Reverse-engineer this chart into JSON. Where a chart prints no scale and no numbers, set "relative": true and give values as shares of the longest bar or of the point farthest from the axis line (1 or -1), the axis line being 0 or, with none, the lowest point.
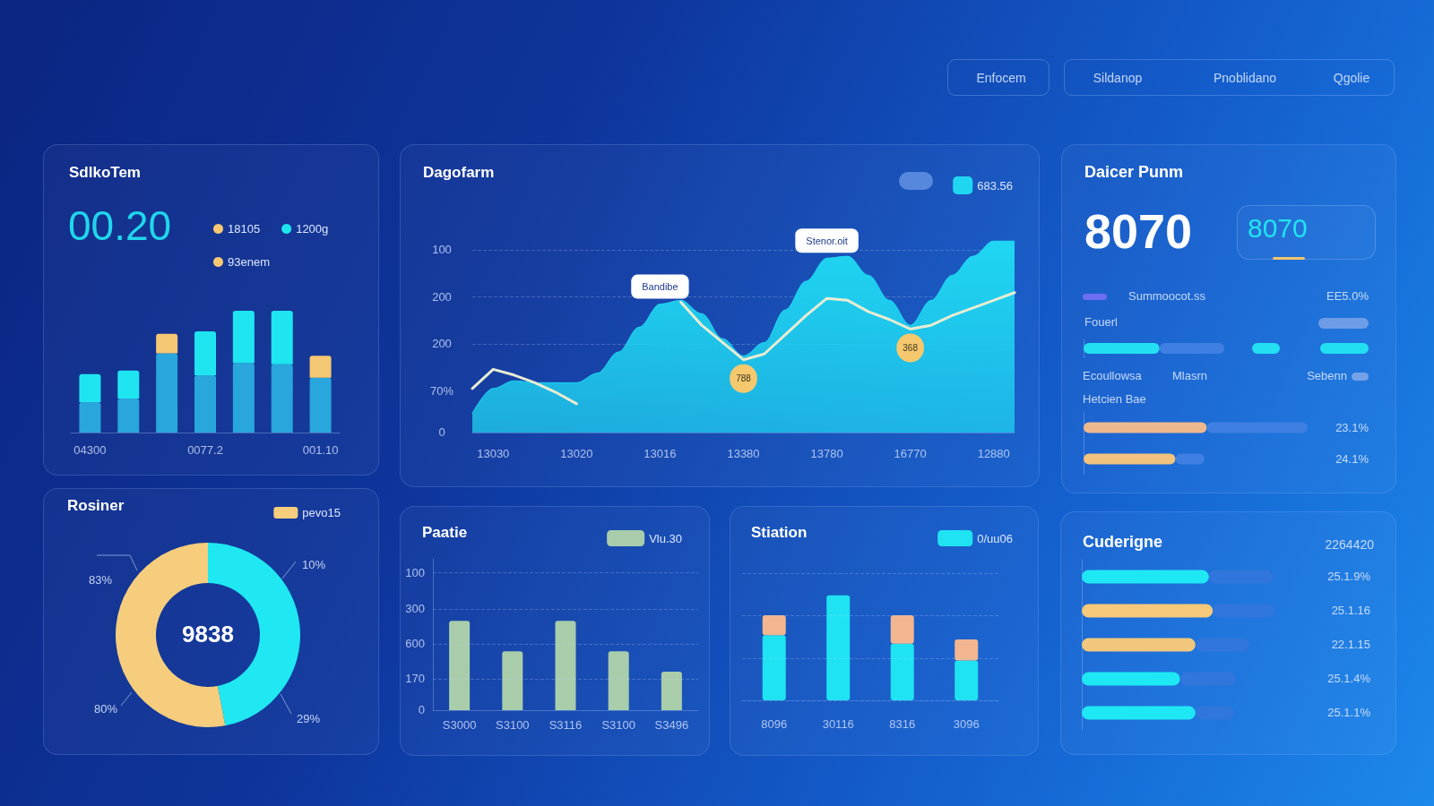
{
  "chart_data": [
    {
      "type": "other",
      "annotations": [
        "Enfocem",
        "Sildanop",
        "Pnoblidano",
        "Qgolie"
      ]
    },
    {
      "type": "bar",
      "title": "SdlkoTem",
      "annotations": [
        "00.20"
      ],
      "categories": [
        "04300",
        null,
        null,
        "0077.2",
        null,
        null,
        "001.10"
      ],
      "relative": true,
      "stacked": true,
      "legend": "top right",
      "series": [
        {
          "color": "#29a6dc",
          "values": [
            0.25,
            0.28,
            0.65,
            0.47,
            0.57,
            0.56,
            0.45
          ]
        },
        {
          "name": "18105",
          "color": "#f5c873",
          "values": [
            null,
            null,
            0.16,
            null,
            null,
            null,
            null
          ]
        },
        {
          "name": "1200g",
          "color": "#1fe5f0",
          "values": [
            0.23,
            0.23,
            null,
            0.36,
            0.43,
            0.44,
            null
          ]
        },
        {
          "name": "93enem",
          "color": "#f5c873",
          "values": [
            null,
            null,
            null,
            null,
            null,
            null,
            0.18
          ]
        }
      ]
    },
    {
      "type": "area",
      "title": "Dagofarm",
      "relative": true,
      "categories": [
        null,
        "13030",
        null,
        null,
        null,
        "13020",
        null,
        null,
        null,
        "13016",
        null,
        null,
        null,
        "13380",
        null,
        null,
        null,
        "13780",
        null,
        null,
        null,
        "16770",
        null,
        null,
        null,
        "12880",
        null
      ],
      "legend": "top right",
      "annotations": [
        "100",
        "200",
        "200",
        "70%",
        "0",
        {
          "text": "Bandibe",
          "x": "13016",
          "y": 0.67
        },
        {
          "text": "Stenor.oit",
          "x": "13780",
          "y": 0.91
        },
        {
          "text": "788",
          "x": "13380",
          "y": 0.38
        },
        {
          "text": "368",
          "x": "16770",
          "y": 0.54
        }
      ],
      "ref_lines": [
        {
          "axis": "y",
          "value": 0.95,
          "line_style": "dashed"
        },
        {
          "axis": "y",
          "value": 0.71,
          "line_style": "dashed"
        },
        {
          "axis": "y",
          "value": 0.46,
          "line_style": "dashed"
        }
      ],
      "series": [
        {
          "name": "683.56",
          "color": "#1fd6f2",
          "values": [
            0.1,
            0.23,
            0.27,
            0.26,
            0.26,
            0.26,
            0.31,
            0.42,
            0.55,
            0.67,
            0.69,
            0.62,
            0.49,
            0.4,
            0.47,
            0.64,
            0.79,
            0.91,
            0.92,
            0.82,
            0.69,
            0.56,
            0.69,
            0.82,
            0.92,
            1,
            1
          ]
        },
        {
          "type": "line",
          "color": "#e6ecd2",
          "values": [
            0.23,
            0.33,
            0.3,
            0.26,
            0.21,
            0.15,
            null,
            null,
            null,
            null,
            0.68,
            0.56,
            0.47,
            0.38,
            0.41,
            0.51,
            0.61,
            0.7,
            0.69,
            0.63,
            0.59,
            0.54,
            0.56,
            0.61,
            0.65,
            0.69,
            0.73
          ]
        }
      ]
    },
    {
      "type": "other",
      "title": "Daicer Punm",
      "annotations": [
        "8070",
        "8070",
        "Summoocot.ss",
        "EE5.0%",
        "Fouerl",
        "Ecoullowsa",
        "Mlasrn",
        "Sebenn",
        "Hetcien Bae"
      ]
    },
    {
      "type": "bar",
      "orientation": "horizontal",
      "relative": true,
      "stacked": true,
      "categories": [
        null
      ],
      "series": [
        {
          "color": "#22e0f2",
          "values": [
            0.54
          ]
        },
        {
          "color": "#3f7fe2",
          "values": [
            0.46
          ]
        }
      ]
    },
    {
      "type": "bar",
      "orientation": "horizontal",
      "relative": true,
      "stacked": true,
      "categories": [
        null,
        null
      ],
      "annotations": [
        "23.1%",
        "24.1%"
      ],
      "series": [
        {
          "colors": [
            "#eeb88e",
            "#f2c27e"
          ],
          "values": [
            0.55,
            0.41
          ]
        },
        {
          "color": "#3f7fe2",
          "values": [
            0.45,
            0.13
          ]
        }
      ]
    },
    {
      "type": "donut",
      "title": "Rosiner",
      "annotations": [
        "9838",
        "83%",
        "10%",
        "80%",
        "29%"
      ],
      "categories": [
        null,
        "pevo15"
      ],
      "values": [
        47,
        53
      ],
      "colors": [
        "#1fe8f2",
        "#f5cd7d"
      ],
      "legend": "top right"
    },
    {
      "type": "bar",
      "title": "Paatie",
      "relative": true,
      "categories": [
        "S3000",
        "S3100",
        "S3116",
        "S3100",
        "S3496"
      ],
      "annotations": [
        "100",
        "300",
        "600",
        "170",
        "0"
      ],
      "legend": "top right",
      "ref_lines": [
        {
          "axis": "y",
          "value": 0.35,
          "line_style": "dashed"
        },
        {
          "axis": "y",
          "value": 0.74,
          "line_style": "dashed"
        },
        {
          "axis": "y",
          "value": 1.13,
          "line_style": "dashed"
        },
        {
          "axis": "y",
          "value": 1.54,
          "line_style": "dashed"
        }
      ],
      "series": [
        {
          "name": "Vlu.30",
          "color": "#a9cdab",
          "values": [
            1,
            0.66,
            1,
            0.66,
            0.43
          ]
        }
      ]
    },
    {
      "type": "bar",
      "title": "Stiation",
      "relative": true,
      "stacked": true,
      "categories": [
        "8096",
        "30116",
        "8316",
        "3096"
      ],
      "legend": "top right",
      "ref_lines": [
        {
          "axis": "y",
          "value": 0.4,
          "line_style": "dashed"
        },
        {
          "axis": "y",
          "value": 0.81,
          "line_style": "dashed"
        },
        {
          "axis": "y",
          "value": 1.21,
          "line_style": "dashed"
        }
      ],
      "series": [
        {
          "name": "0/uu06",
          "color": "#1fe3f2",
          "values": [
            0.62,
            1,
            0.54,
            0.38
          ]
        },
        {
          "color": "#f2b58f",
          "values": [
            0.19,
            null,
            0.27,
            0.2
          ]
        }
      ]
    },
    {
      "type": "bar",
      "title": "Cuderigne",
      "annotations": [
        "2264420",
        "25.1.9%",
        "25.1.16",
        "22.1.15",
        "25.1.4%",
        "25.1.1%"
      ],
      "orientation": "horizontal",
      "relative": true,
      "stacked": true,
      "categories": [
        null,
        null,
        null,
        null,
        null
      ],
      "series": [
        {
          "colors": [
            "#1fe8f5",
            "#f5c87a",
            "#f0c77c",
            "#1fe8f5",
            "#1fe8f5"
          ],
          "values": [
            0.66,
            0.68,
            0.59,
            0.51,
            0.59
          ]
        },
        {
          "color": "#3176dc",
          "values": [
            0.33,
            0.32,
            0.28,
            0.29,
            0.2
          ]
        }
      ]
    }
  ]
}
